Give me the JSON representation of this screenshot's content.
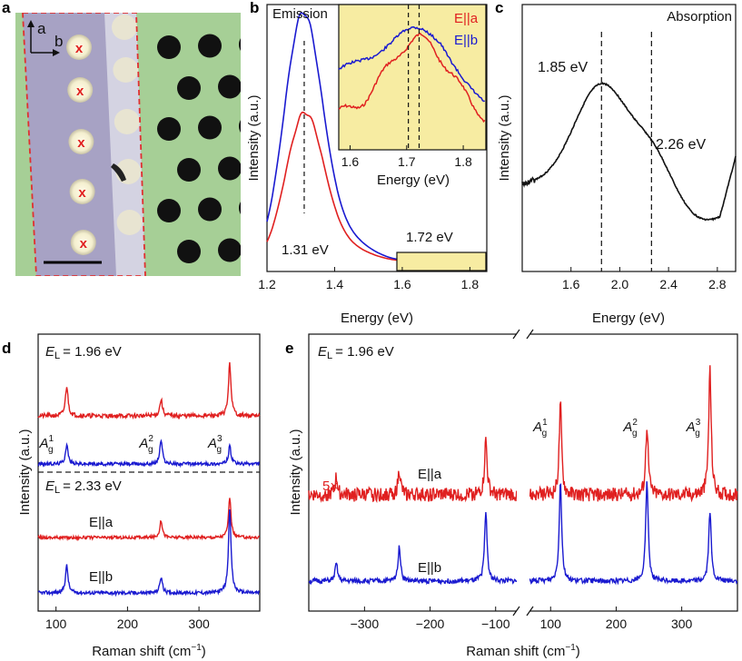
{
  "panel_labels": [
    "a",
    "b",
    "c",
    "d",
    "e"
  ],
  "chart_data": [
    {
      "panel": "a",
      "type": "other",
      "description": "Optical image",
      "axis_labels": [
        "a",
        "b"
      ],
      "markers": [
        "x",
        "x",
        "x",
        "x",
        "x"
      ],
      "colors": {
        "sample": "#a9a3c5",
        "substrate": "#a6cf96",
        "outline": "#e03030"
      }
    },
    {
      "panel": "b",
      "type": "line",
      "title": "Emission",
      "xlabel": "Energy (eV)",
      "ylabel": "Intensity (a.u.)",
      "xlim": [
        1.2,
        1.85
      ],
      "xticks": [
        "1.2",
        "1.4",
        "1.6",
        "1.8"
      ],
      "series": [
        {
          "name": "E||a",
          "color": "#e02020",
          "peak": 1.31,
          "amplitude": 0.6,
          "width": 0.055
        },
        {
          "name": "E||b",
          "color": "#1a1ad0",
          "peak": 1.305,
          "amplitude": 1.0,
          "width": 0.055
        }
      ],
      "annotations": [
        "1.31 eV",
        "1.72 eV"
      ],
      "inset": {
        "xlabel": "Energy (eV)",
        "xlim": [
          1.58,
          1.84
        ],
        "xticks": [
          "1.6",
          "1.7",
          "1.8"
        ],
        "legend": [
          "E||a",
          "E||b"
        ],
        "dashed_lines": [
          1.703,
          1.722
        ],
        "background": "#f7eca2"
      }
    },
    {
      "panel": "c",
      "type": "line",
      "title": "Absorption",
      "xlabel": "Energy (eV)",
      "ylabel": "Intensity (a.u.)",
      "xlim": [
        1.2,
        2.95
      ],
      "xticks": [
        "1.6",
        "2.0",
        "2.4",
        "2.8"
      ],
      "peaks": [
        1.85,
        2.26
      ],
      "annotations": [
        "1.85 eV",
        "2.26 eV"
      ]
    },
    {
      "panel": "d",
      "type": "line",
      "xlabel": "Raman shift (cm",
      "xlabel_sup": "−1",
      "xlabel_end": ")",
      "ylabel": "Intensity (a.u.)",
      "xlim": [
        75,
        385
      ],
      "xticks": [
        "100",
        "200",
        "300"
      ],
      "peak_positions": [
        115,
        247,
        343
      ],
      "sections": [
        {
          "label": "1.96 eV",
          "spectra": [
            {
              "color": "#e02020",
              "amps": [
                0.55,
                0.3,
                0.95
              ]
            },
            {
              "color": "#1a1ad0",
              "amps": [
                0.45,
                0.55,
                0.4
              ]
            }
          ]
        },
        {
          "label": "2.33 eV",
          "spectra": [
            {
              "name": "E||a",
              "color": "#e02020",
              "amps": [
                0.0,
                0.45,
                1.0
              ]
            },
            {
              "name": "E||b",
              "color": "#1a1ad0",
              "amps": [
                0.6,
                0.35,
                1.8
              ]
            }
          ]
        }
      ],
      "mode_labels": [
        "1",
        "2",
        "3"
      ],
      "mode_base": "A",
      "mode_sub": "g",
      "excitation_prefix": "E",
      "excitation_sub": "L",
      "legend": [
        "E||a",
        "E||b"
      ]
    },
    {
      "panel": "e",
      "type": "line",
      "xlabel": "Raman shift (cm",
      "xlabel_sup": "−1",
      "xlabel_end": ")",
      "ylabel": "Intensity (a.u.)",
      "xlim_left": [
        -385,
        -65
      ],
      "xlim_right": [
        65,
        385
      ],
      "xticks": [
        "−300",
        "−200",
        "−100",
        "100",
        "200",
        "300"
      ],
      "excitation": "1.96 eV",
      "excitation_prefix": "E",
      "excitation_sub": "L",
      "multiplier": "5×",
      "mode_labels": [
        "1",
        "2",
        "3"
      ],
      "mode_base": "A",
      "mode_sub": "g",
      "series": [
        {
          "name": "E||a",
          "color": "#e02020",
          "peaks": [
            -343,
            -247,
            -115,
            115,
            247,
            343
          ],
          "amps": [
            0.35,
            0.5,
            1.1,
            1.8,
            1.4,
            2.5
          ]
        },
        {
          "name": "E||b",
          "color": "#1a1ad0",
          "peaks": [
            -343,
            -247,
            -115,
            115,
            247,
            343
          ],
          "amps": [
            0.35,
            0.7,
            1.4,
            2.0,
            2.0,
            1.4
          ]
        }
      ]
    }
  ]
}
